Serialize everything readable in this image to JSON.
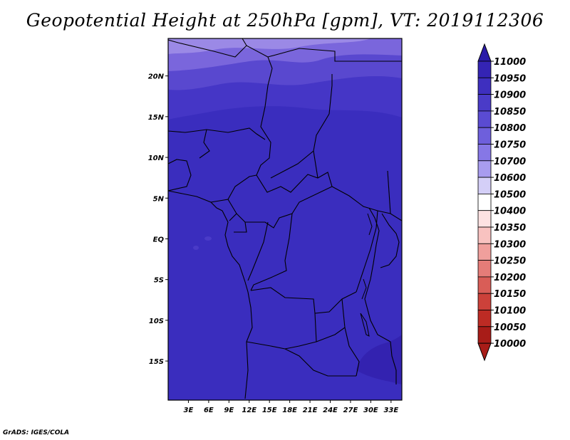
{
  "title": "Geopotential Height at 250hPa [gpm], VT: 2019112306",
  "credit": "GrADS: IGES/COLA",
  "map": {
    "lat_labels": [
      "20N",
      "15N",
      "10N",
      "5N",
      "EQ",
      "5S",
      "10S",
      "15S"
    ],
    "lon_labels": [
      "3E",
      "6E",
      "9E",
      "12E",
      "15E",
      "18E",
      "21E",
      "24E",
      "27E",
      "30E",
      "33E"
    ],
    "lat_values": [
      20,
      15,
      10,
      5,
      0,
      -5,
      -10,
      -15
    ],
    "lon_values": [
      3,
      6,
      9,
      12,
      15,
      18,
      21,
      24,
      27,
      30,
      33
    ],
    "lat_range": [
      -19.8,
      24.6
    ],
    "lon_range": [
      0,
      34.6
    ],
    "colors": {
      "base": "#3a2dbe",
      "band1": "#4536c6",
      "band2": "#5948cf",
      "band3": "#7a66dc",
      "band4": "#9b89e6",
      "low": "#3322b0"
    }
  },
  "colorbar": {
    "levels": [
      "11000",
      "10950",
      "10900",
      "10850",
      "10800",
      "10750",
      "10700",
      "10600",
      "10500",
      "10400",
      "10350",
      "10300",
      "10250",
      "10200",
      "10150",
      "10100",
      "10050",
      "10000"
    ],
    "colors": [
      "#2a1aa8",
      "#3424b4",
      "#3e2fbf",
      "#4a3bc8",
      "#5a4bd2",
      "#6e5fdc",
      "#8677e6",
      "#a89cef",
      "#d4cff7",
      "#ffffff",
      "#fde2e2",
      "#f8c2c0",
      "#f09f9c",
      "#e57c78",
      "#d95d57",
      "#cc413a",
      "#bd2b24",
      "#a81c18"
    ]
  }
}
